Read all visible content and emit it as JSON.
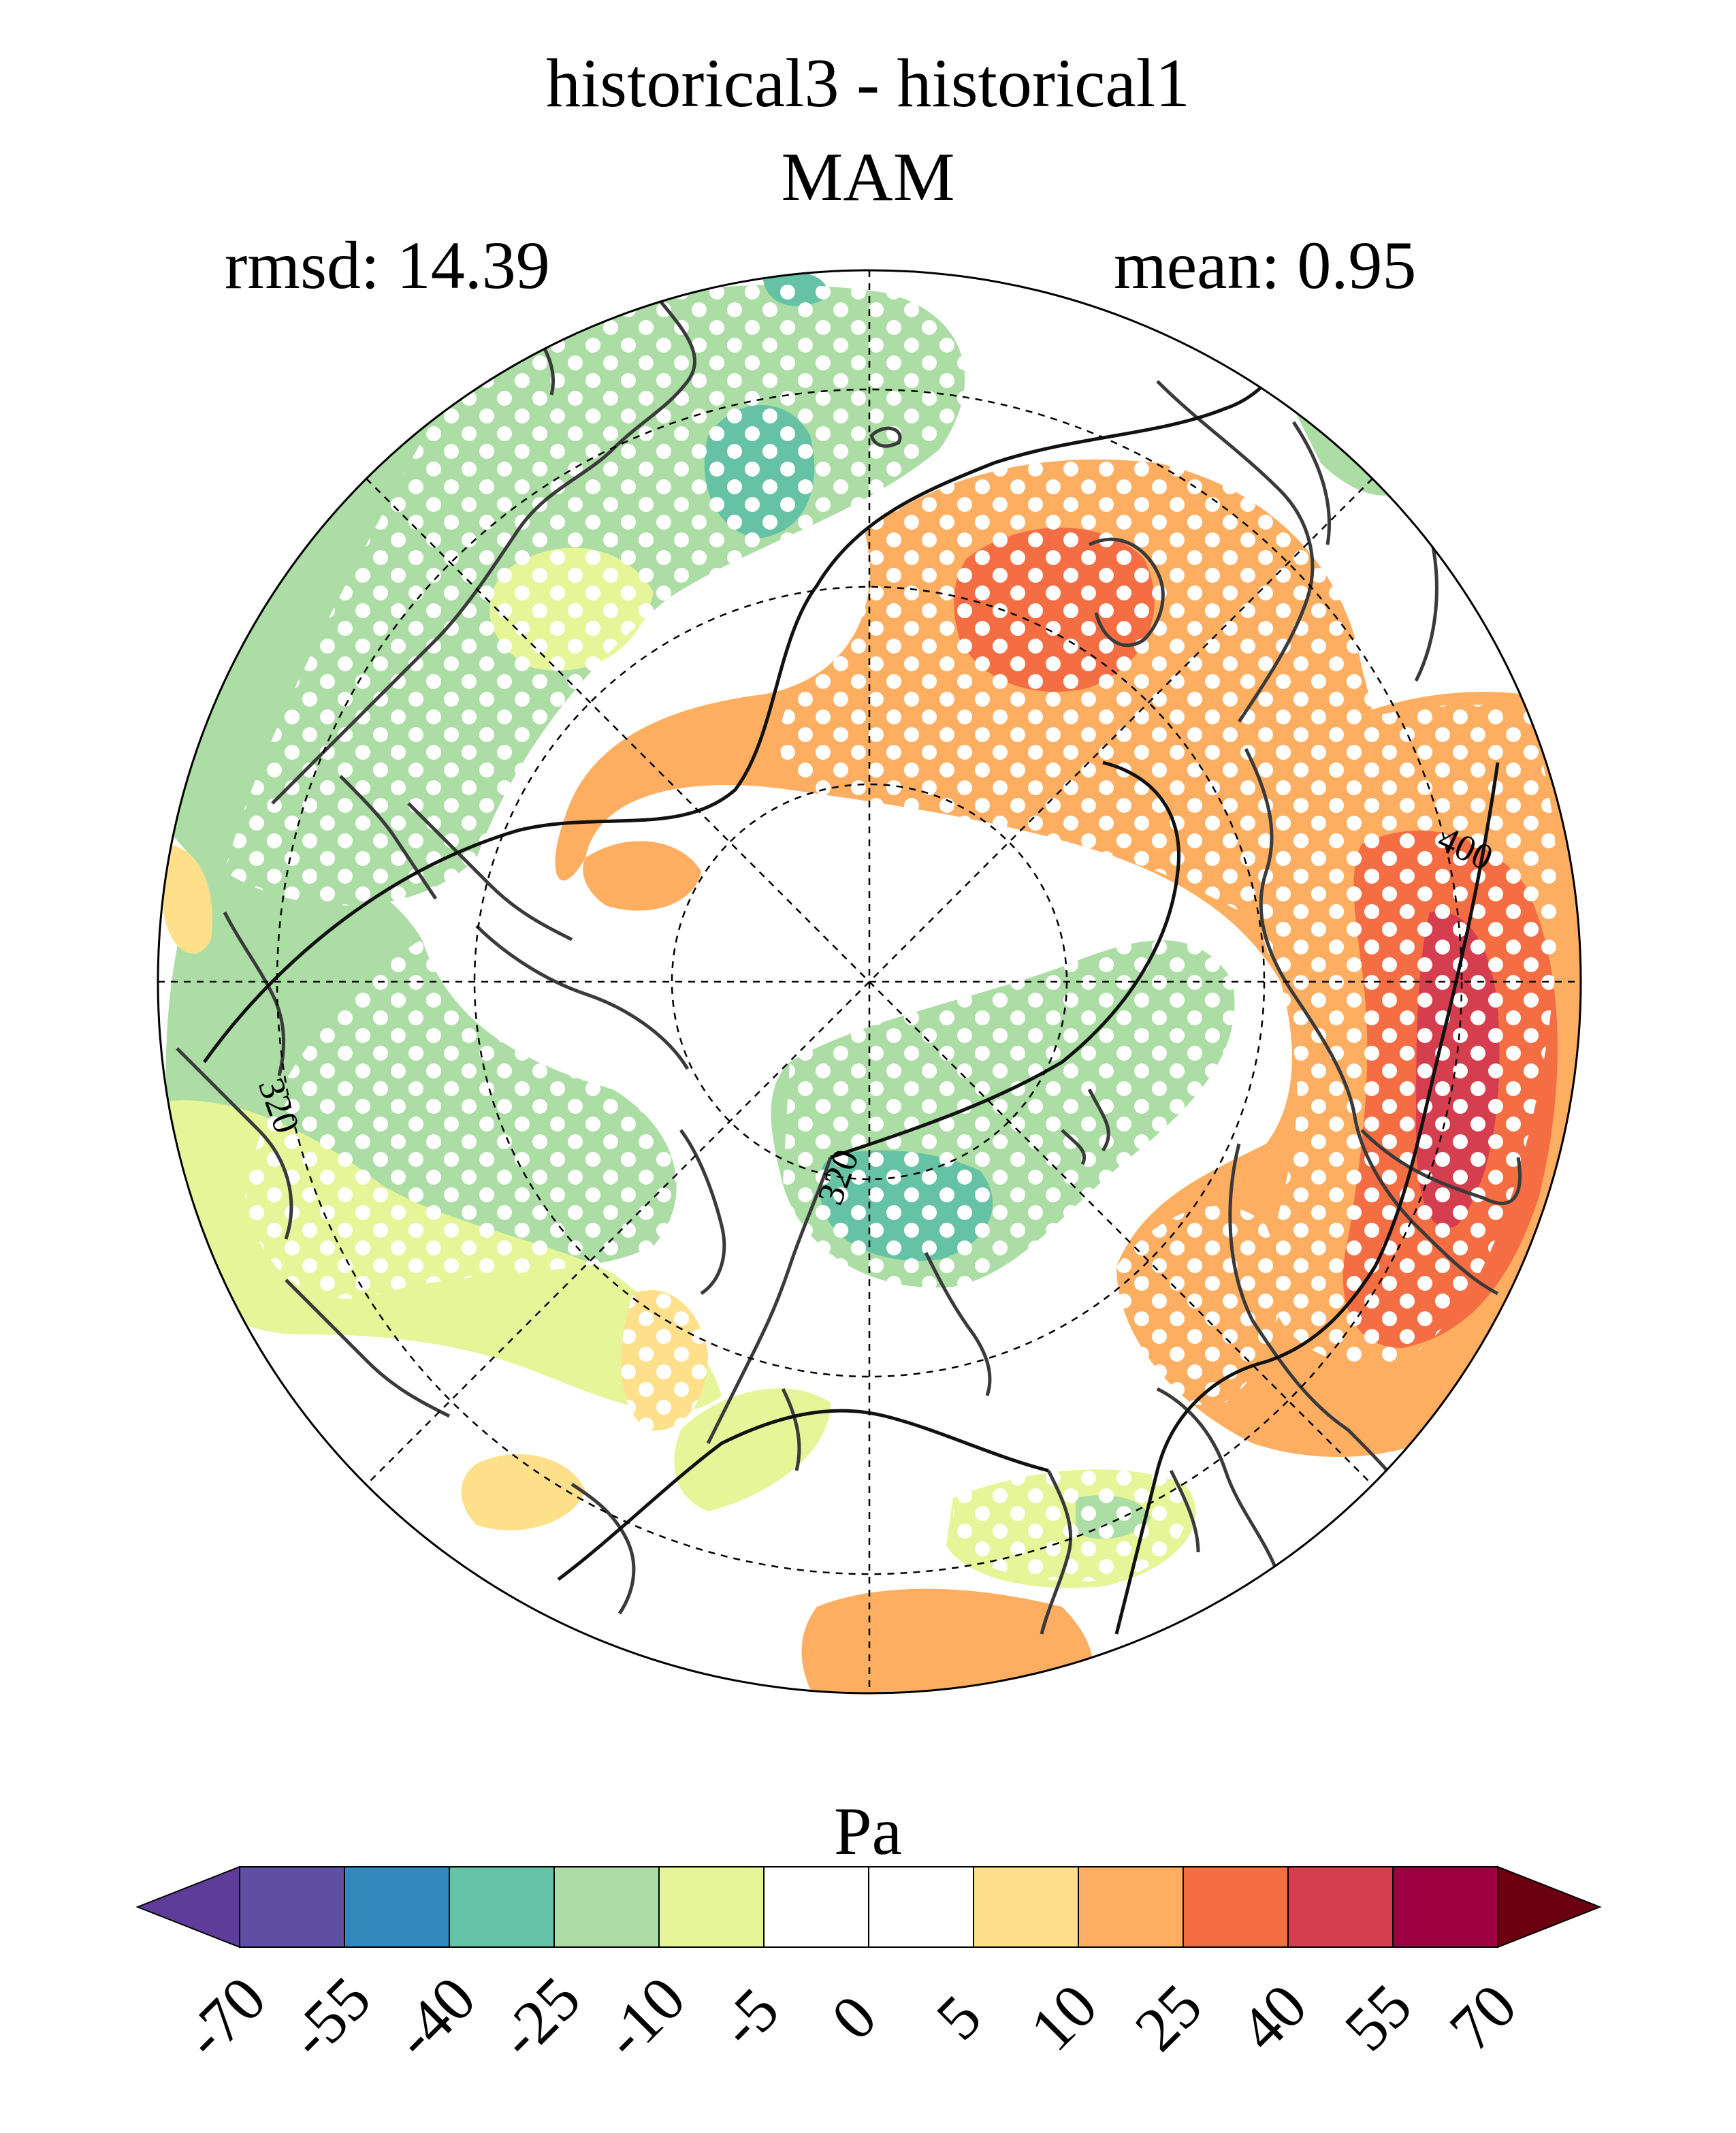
{
  "title": "historical3 - historical1",
  "season": "MAM",
  "rmsd_label": "rmsd: 14.39",
  "mean_label": "mean: 0.95",
  "units": "Pa",
  "contour_labels": [
    "400",
    "320",
    "320"
  ],
  "colorbar": {
    "ticks": [
      "-70",
      "-55",
      "-40",
      "-25",
      "-10",
      "-5",
      "0",
      "5",
      "10",
      "25",
      "40",
      "55",
      "70"
    ],
    "colors": [
      "#5e3c99",
      "#5e4fa2",
      "#3288bd",
      "#66c2a5",
      "#abdda4",
      "#e6f598",
      "#ffffff",
      "#ffffff",
      "#fee08b",
      "#fdae61",
      "#f46d43",
      "#d53e4f",
      "#9e0142",
      "#6b0010"
    ]
  }
}
